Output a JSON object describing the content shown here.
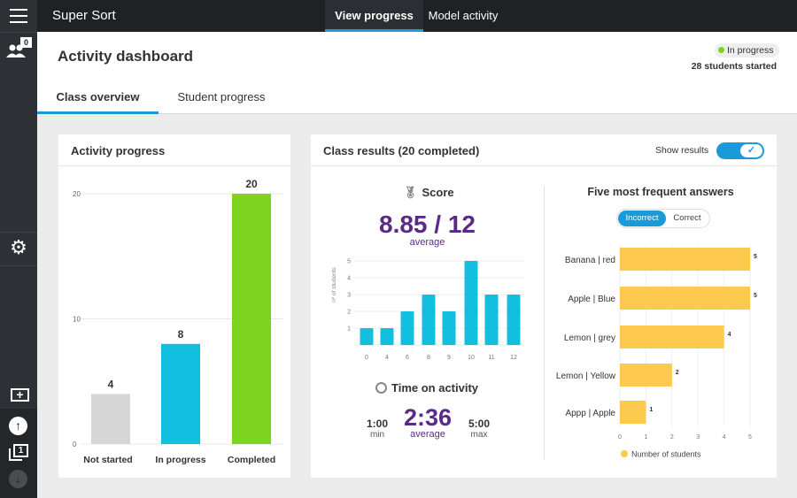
{
  "app": {
    "title": "Super Sort",
    "nav_tabs": [
      {
        "label": "View progress",
        "active": true
      },
      {
        "label": "Model activity",
        "active": false
      }
    ]
  },
  "sidebar": {
    "users_badge": "0",
    "page_count": "1",
    "icons": [
      "menu-icon",
      "users-icon",
      "gear-icon",
      "add-icon",
      "arrow-up-icon",
      "pages-icon",
      "arrow-down-icon"
    ]
  },
  "header": {
    "title": "Activity dashboard",
    "status": "In progress",
    "status_color": "#7ed321",
    "students_started": "28 students started",
    "tabs": [
      {
        "label": "Class overview",
        "active": true
      },
      {
        "label": "Student progress",
        "active": false
      }
    ]
  },
  "activity_progress": {
    "title": "Activity progress"
  },
  "class_results": {
    "title": "Class results (20 completed)",
    "show_results_label": "Show results",
    "show_results": true,
    "score": {
      "title": "Score",
      "value": "8.85 / 12",
      "sub": "average"
    },
    "time": {
      "title": "Time on activity",
      "min": "1:00",
      "min_label": "min",
      "avg": "2:36",
      "avg_label": "average",
      "max": "5:00",
      "max_label": "max"
    },
    "answers": {
      "title": "Five most frequent answers",
      "toggle": [
        "Incorrect",
        "Correct"
      ],
      "active": "Incorrect"
    }
  },
  "colors": {
    "accent": "#1a9bd7",
    "purple": "#5b2a86",
    "cyan": "#13bfdf",
    "green": "#7ed321",
    "grey": "#d6d6d6",
    "yellow": "#fdc94f"
  },
  "chart_data": [
    {
      "type": "bar",
      "title": "",
      "categories": [
        "Not started",
        "In progress",
        "Completed"
      ],
      "values": [
        4,
        8,
        20
      ],
      "colors": [
        "#d6d6d6",
        "#13bfdf",
        "#7ed321"
      ],
      "yticks": [
        0,
        10,
        20
      ],
      "ylim": [
        0,
        20
      ],
      "grid": true
    },
    {
      "type": "bar",
      "title": "",
      "ylabel": "nº of students",
      "categories": [
        "0",
        "4",
        "6",
        "8",
        "9",
        "10",
        "11",
        "12"
      ],
      "values": [
        1,
        1,
        2,
        3,
        2,
        5,
        3,
        3
      ],
      "yticks": [
        1,
        2,
        3,
        4,
        5
      ],
      "ylim": [
        0,
        5
      ],
      "grid": true
    },
    {
      "type": "bar",
      "orientation": "horizontal",
      "categories": [
        "Banana | red",
        "Apple | Blue",
        "Lemon | grey",
        "Lemon  | Yellow",
        "Appp | Apple"
      ],
      "values": [
        5,
        5,
        4,
        2,
        1
      ],
      "xticks": [
        0,
        1,
        2,
        3,
        4,
        5
      ],
      "xlim": [
        0,
        5
      ],
      "legend": "bottom",
      "series_name": "Number of students"
    }
  ]
}
